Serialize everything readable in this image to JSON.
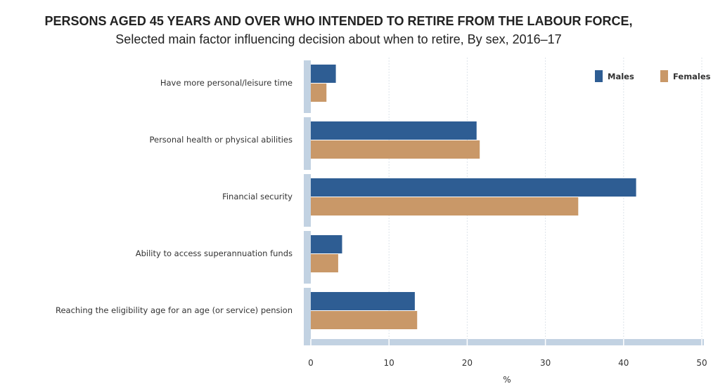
{
  "title": "PERSONS AGED 45 YEARS AND OVER WHO INTENDED TO RETIRE FROM THE LABOUR FORCE,",
  "subtitle": "Selected main factor influencing decision about when to retire, By sex, 2016–17",
  "chart_data": {
    "type": "bar",
    "orientation": "horizontal",
    "categories": [
      "Have more personal/leisure time",
      "Personal health or physical abilities",
      "Financial security",
      "Ability to access superannuation funds",
      "Reaching the eligibility age for an age (or service) pension"
    ],
    "series": [
      {
        "name": "Males",
        "color": "#2e5d93",
        "values": [
          3.2,
          21.2,
          41.6,
          4.0,
          13.3
        ]
      },
      {
        "name": "Females",
        "color": "#c99868",
        "values": [
          2.0,
          21.6,
          34.2,
          3.5,
          13.6
        ]
      }
    ],
    "xlabel": "%",
    "ylabel": "",
    "xlim": [
      0,
      50
    ],
    "xticks": [
      0,
      10,
      20,
      30,
      40,
      50
    ],
    "grid": true,
    "legend_position": "top-right"
  }
}
